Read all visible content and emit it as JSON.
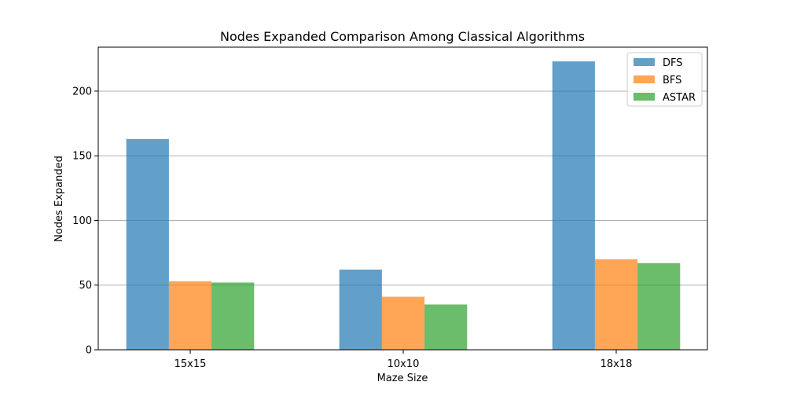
{
  "chart_data": {
    "type": "bar",
    "title": "Nodes Expanded Comparison Among Classical Algorithms",
    "xlabel": "Maze Size",
    "ylabel": "Nodes Expanded",
    "categories": [
      "15x15",
      "10x10",
      "18x18"
    ],
    "series": [
      {
        "name": "DFS",
        "color": "#1f77b4",
        "values": [
          163,
          62,
          223
        ]
      },
      {
        "name": "BFS",
        "color": "#ff7f0e",
        "values": [
          53,
          41,
          70
        ]
      },
      {
        "name": "ASTAR",
        "color": "#2ca02c",
        "values": [
          52,
          35,
          67
        ]
      }
    ],
    "ylim": [
      0,
      234
    ],
    "yticks": [
      0,
      50,
      100,
      150,
      200
    ],
    "grid": "y",
    "legend": "top-right"
  }
}
